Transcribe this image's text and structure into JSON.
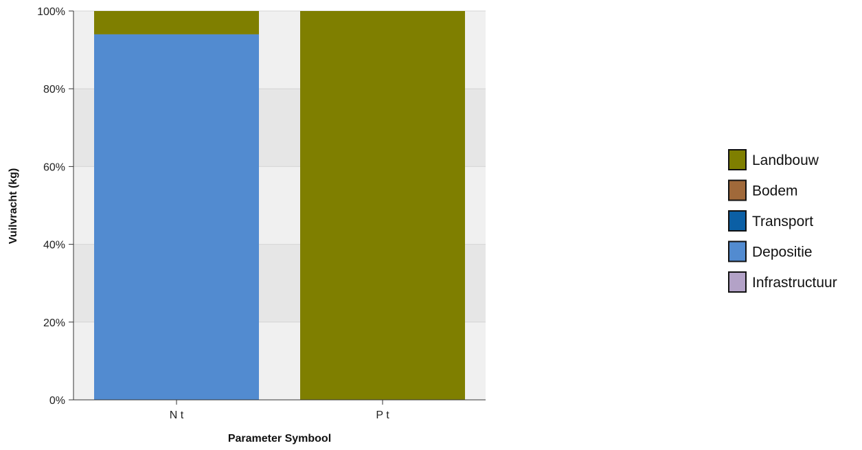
{
  "chart_data": {
    "type": "bar",
    "stacked": true,
    "normalized": true,
    "categories": [
      "N t",
      "P t"
    ],
    "series": [
      {
        "name": "Landbouw",
        "color": "#7f7f00",
        "values": [
          6,
          100
        ]
      },
      {
        "name": "Bodem",
        "color": "#a0693a",
        "values": [
          0,
          0
        ]
      },
      {
        "name": "Transport",
        "color": "#0b5fa5",
        "values": [
          0,
          0
        ]
      },
      {
        "name": "Depositie",
        "color": "#528bd0",
        "values": [
          94,
          0
        ]
      },
      {
        "name": "Infrastructuur",
        "color": "#b3a2c7",
        "values": [
          0,
          0
        ]
      }
    ],
    "stack_order": [
      "Infrastructuur",
      "Depositie",
      "Transport",
      "Bodem",
      "Landbouw"
    ],
    "ylim": [
      0,
      100
    ],
    "yticks": [
      0,
      20,
      40,
      60,
      80,
      100
    ],
    "ytick_labels": [
      "0%",
      "20%",
      "40%",
      "60%",
      "80%",
      "100%"
    ],
    "xlabel": "Parameter Symbool",
    "ylabel": "Vuilvracht (kg)",
    "legend_placement": "right",
    "band_colors": [
      "#f0f0f0",
      "#e6e6e6"
    ]
  }
}
